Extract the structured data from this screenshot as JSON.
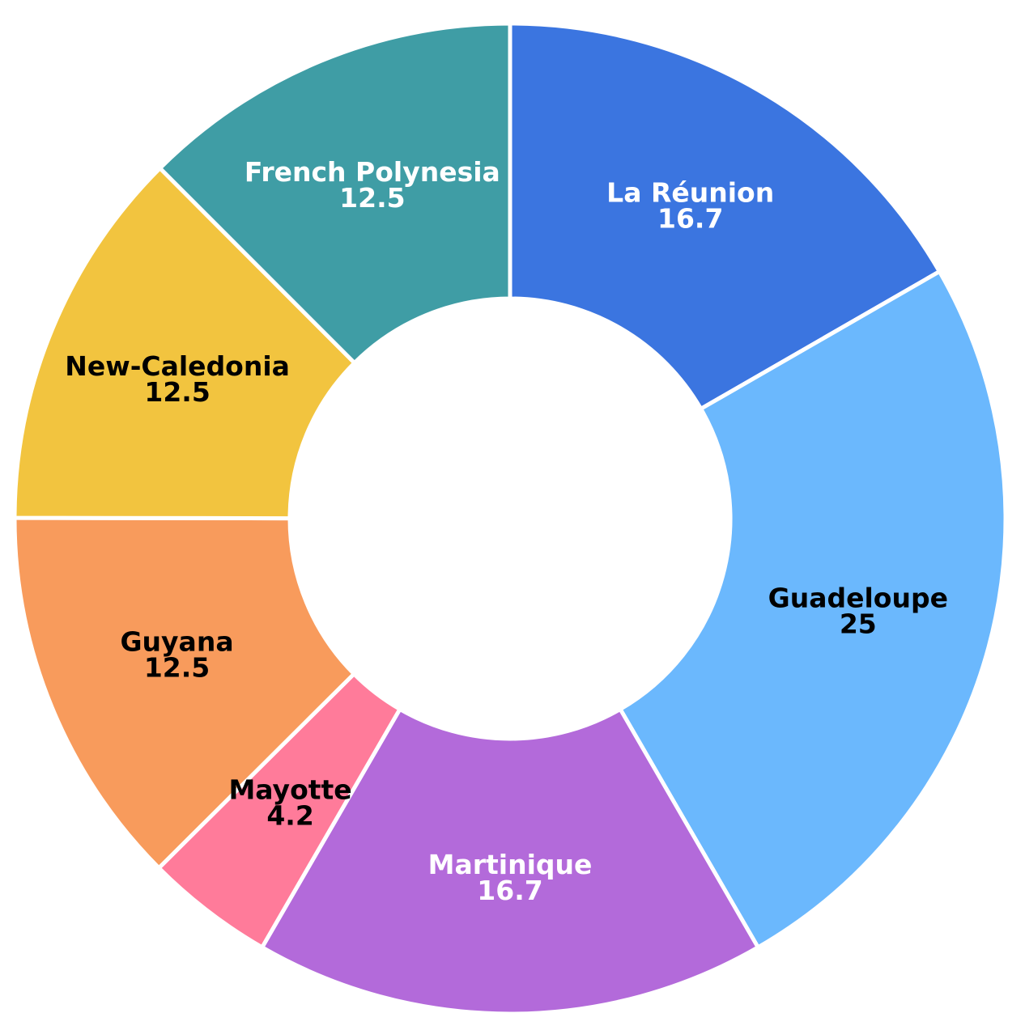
{
  "chart_data": {
    "type": "pie",
    "variant": "donut",
    "categories": [
      "La Réunion",
      "Guadeloupe",
      "Martinique",
      "Mayotte",
      "Guyana",
      "New-Caledonia",
      "French Polynesia"
    ],
    "values": [
      16.7,
      25,
      16.7,
      4.2,
      12.5,
      12.5,
      12.5
    ],
    "value_labels": [
      "16.7",
      "25",
      "16.7",
      "4.2",
      "12.5",
      "12.5",
      "12.5"
    ],
    "colors": [
      "#3b75e0",
      "#6bb8fd",
      "#b36ada",
      "#ff7b9a",
      "#f89b5c",
      "#f2c43f",
      "#3f9da5"
    ],
    "label_colors": [
      "#ffffff",
      "#000000",
      "#ffffff",
      "#000000",
      "#000000",
      "#000000",
      "#ffffff"
    ],
    "legend": "none"
  }
}
